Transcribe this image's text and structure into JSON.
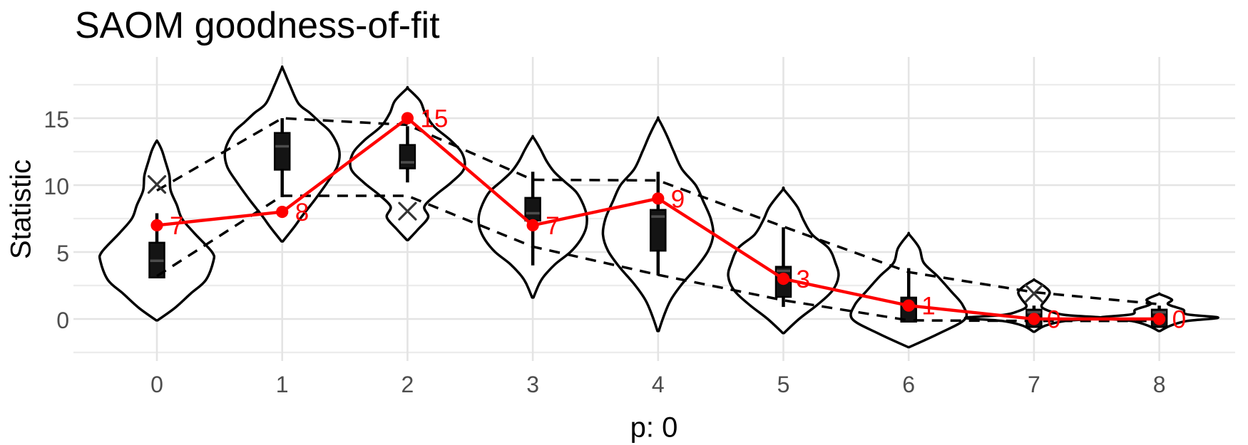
{
  "title": "SAOM goodness-of-fit",
  "axes": {
    "x_title": "p: 0",
    "y_title": "Statistic",
    "x_tick_labels": [
      "0",
      "1",
      "2",
      "3",
      "4",
      "5",
      "6",
      "7",
      "8"
    ],
    "y_tick_labels": [
      "0",
      "5",
      "10",
      "15"
    ]
  },
  "colors": {
    "background": "#ffffff",
    "observed": "#fe0000",
    "grid_major": "#e4e4e4",
    "grid_minor": "#ececec",
    "axis_text": "#4d4d4d",
    "violin_stroke": "#000000",
    "violin_fill": "#ffffff",
    "box_fill": "#141414",
    "box_stroke": "#000000",
    "box_median": "#4d4d4d",
    "envelope": "#000000",
    "cross": "#333333"
  },
  "chart_data": {
    "type": "violin",
    "title": "SAOM goodness-of-fit",
    "xlabel": "p: 0",
    "ylabel": "Statistic",
    "x": [
      0,
      1,
      2,
      3,
      4,
      5,
      6,
      7,
      8
    ],
    "y_major_ticks": [
      0,
      5,
      10,
      15
    ],
    "y_minor_gridlines": [
      -2.5,
      2.5,
      7.5,
      12.5,
      17.5
    ],
    "ylim": [
      -3.2,
      19.6
    ],
    "grid": true,
    "legend": false,
    "observed": {
      "values": [
        7,
        8,
        15,
        7,
        9,
        3,
        1,
        0,
        0
      ],
      "labels": [
        "7",
        "8",
        "15",
        "7",
        "9",
        "3",
        "1",
        "0",
        "0"
      ]
    },
    "envelope_upper": [
      9.6,
      15.0,
      14.5,
      10.4,
      10.35,
      6.9,
      3.5,
      2.0,
      1.1
    ],
    "envelope_lower": [
      3.2,
      9.2,
      9.2,
      5.4,
      3.3,
      1.4,
      -0.1,
      -0.15,
      -0.15
    ],
    "crosses": [
      {
        "x": 0,
        "y": 10.05
      },
      {
        "x": 2,
        "y": 8.05
      },
      {
        "x": 7,
        "y": 1.9
      }
    ],
    "boxplots": [
      {
        "lo": 3.1,
        "q1": 3.1,
        "med": 4.35,
        "q3": 5.7,
        "hi": 7.9
      },
      {
        "lo": 9.1,
        "q1": 11.15,
        "med": 12.9,
        "q3": 13.9,
        "hi": 15.0
      },
      {
        "lo": 10.2,
        "q1": 11.25,
        "med": 11.7,
        "q3": 13.0,
        "hi": 14.4
      },
      {
        "lo": 4.0,
        "q1": 7.35,
        "med": 7.9,
        "q3": 9.05,
        "hi": 11.0
      },
      {
        "lo": 3.25,
        "q1": 5.1,
        "med": 7.65,
        "q3": 8.15,
        "hi": 11.0
      },
      {
        "lo": 0.9,
        "q1": 1.65,
        "med": 3.6,
        "q3": 3.9,
        "hi": 6.85
      },
      {
        "lo": -0.2,
        "q1": -0.2,
        "med": 1.0,
        "q3": 1.6,
        "hi": 3.8
      },
      {
        "lo": -0.6,
        "q1": -0.6,
        "med": 0.5,
        "q3": 0.7,
        "hi": 1.0
      },
      {
        "lo": -0.6,
        "q1": -0.6,
        "med": 0.5,
        "q3": 0.7,
        "hi": 1.0
      }
    ],
    "violins": [
      [
        [
          -0.1,
          0.005
        ],
        [
          0.8,
          0.14
        ],
        [
          1.9,
          0.27
        ],
        [
          2.9,
          0.39
        ],
        [
          4.3,
          0.45
        ],
        [
          5.0,
          0.44
        ],
        [
          6.4,
          0.3
        ],
        [
          7.5,
          0.2
        ],
        [
          8.5,
          0.16
        ],
        [
          9.6,
          0.11
        ],
        [
          10.7,
          0.1
        ],
        [
          11.7,
          0.07
        ],
        [
          12.6,
          0.04
        ],
        [
          13.25,
          0.005
        ]
      ],
      [
        [
          5.8,
          0.005
        ],
        [
          6.8,
          0.09
        ],
        [
          7.7,
          0.16
        ],
        [
          8.9,
          0.26
        ],
        [
          10.2,
          0.36
        ],
        [
          11.4,
          0.44
        ],
        [
          12.6,
          0.455
        ],
        [
          13.9,
          0.39
        ],
        [
          14.7,
          0.3
        ],
        [
          15.4,
          0.22
        ],
        [
          16.1,
          0.13
        ],
        [
          17.5,
          0.06
        ],
        [
          18.7,
          0.005
        ]
      ],
      [
        [
          5.9,
          0.005
        ],
        [
          6.7,
          0.085
        ],
        [
          7.6,
          0.165
        ],
        [
          8.4,
          0.135
        ],
        [
          9.3,
          0.23
        ],
        [
          10.2,
          0.35
        ],
        [
          11.2,
          0.45
        ],
        [
          12.3,
          0.44
        ],
        [
          13.3,
          0.35
        ],
        [
          14.4,
          0.21
        ],
        [
          15.4,
          0.14
        ],
        [
          16.3,
          0.1
        ],
        [
          17.2,
          0.005
        ]
      ],
      [
        [
          1.6,
          0.005
        ],
        [
          2.6,
          0.05
        ],
        [
          3.2,
          0.09
        ],
        [
          4.1,
          0.18
        ],
        [
          5.0,
          0.3
        ],
        [
          5.9,
          0.38
        ],
        [
          6.8,
          0.425
        ],
        [
          7.7,
          0.43
        ],
        [
          8.6,
          0.4
        ],
        [
          9.5,
          0.345
        ],
        [
          10.3,
          0.25
        ],
        [
          11.0,
          0.17
        ],
        [
          11.8,
          0.11
        ],
        [
          12.7,
          0.06
        ],
        [
          13.55,
          0.005
        ]
      ],
      [
        [
          -0.9,
          0.005
        ],
        [
          0.2,
          0.045
        ],
        [
          1.4,
          0.1
        ],
        [
          2.6,
          0.19
        ],
        [
          3.9,
          0.31
        ],
        [
          5.1,
          0.4
        ],
        [
          6.3,
          0.44
        ],
        [
          7.5,
          0.42
        ],
        [
          8.8,
          0.36
        ],
        [
          10.0,
          0.3
        ],
        [
          11.2,
          0.19
        ],
        [
          12.5,
          0.125
        ],
        [
          13.7,
          0.07
        ],
        [
          14.9,
          0.005
        ]
      ],
      [
        [
          -1.05,
          0.005
        ],
        [
          0.0,
          0.125
        ],
        [
          1.05,
          0.27
        ],
        [
          2.1,
          0.39
        ],
        [
          3.2,
          0.44
        ],
        [
          4.2,
          0.415
        ],
        [
          5.3,
          0.36
        ],
        [
          6.3,
          0.23
        ],
        [
          7.4,
          0.16
        ],
        [
          8.4,
          0.11
        ],
        [
          9.65,
          0.005
        ]
      ],
      [
        [
          -2.1,
          0.005
        ],
        [
          -1.05,
          0.25
        ],
        [
          0.0,
          0.45
        ],
        [
          1.05,
          0.43
        ],
        [
          2.1,
          0.335
        ],
        [
          3.2,
          0.23
        ],
        [
          4.2,
          0.12
        ],
        [
          5.3,
          0.085
        ],
        [
          6.3,
          0.005
        ]
      ],
      [
        [
          -0.95,
          0.005
        ],
        [
          -0.5,
          0.09
        ],
        [
          -0.15,
          0.25
        ],
        [
          0.08,
          0.55
        ],
        [
          0.3,
          0.25
        ],
        [
          0.6,
          0.12
        ],
        [
          0.95,
          0.06
        ],
        [
          1.5,
          0.1
        ],
        [
          2.0,
          0.125
        ],
        [
          2.45,
          0.08
        ],
        [
          2.9,
          0.005
        ]
      ],
      [
        [
          -0.9,
          0.005
        ],
        [
          -0.5,
          0.09
        ],
        [
          -0.15,
          0.22
        ],
        [
          0.1,
          0.47
        ],
        [
          0.35,
          0.22
        ],
        [
          0.7,
          0.19
        ],
        [
          1.1,
          0.07
        ],
        [
          1.45,
          0.1
        ],
        [
          1.85,
          0.005
        ]
      ]
    ]
  }
}
